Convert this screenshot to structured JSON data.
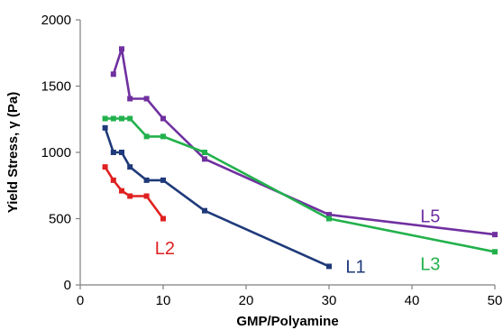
{
  "chart_data": {
    "type": "line",
    "title": "",
    "xlabel": "GMP/Polyamine",
    "ylabel": "Yield Stress, γ (Pa)",
    "xlim": [
      0,
      50
    ],
    "ylim": [
      0,
      2000
    ],
    "xticks": [
      0,
      10,
      20,
      30,
      40,
      50
    ],
    "yticks": [
      0,
      500,
      1000,
      1500,
      2000
    ],
    "grid": false,
    "legend": "inline labels",
    "series": [
      {
        "name": "L5",
        "color": "#7030a0",
        "points": [
          [
            4,
            1590
          ],
          [
            5,
            1780
          ],
          [
            6,
            1405
          ],
          [
            8,
            1405
          ],
          [
            10,
            1255
          ],
          [
            15,
            950
          ],
          [
            30,
            530
          ],
          [
            50,
            380
          ]
        ]
      },
      {
        "name": "L3",
        "color": "#22b14c",
        "points": [
          [
            3,
            1255
          ],
          [
            4,
            1255
          ],
          [
            5,
            1255
          ],
          [
            6,
            1255
          ],
          [
            8,
            1120
          ],
          [
            10,
            1120
          ],
          [
            15,
            1000
          ],
          [
            30,
            500
          ],
          [
            50,
            250
          ]
        ]
      },
      {
        "name": "L1",
        "color": "#1f3a7a",
        "points": [
          [
            3,
            1185
          ],
          [
            4,
            1000
          ],
          [
            5,
            1000
          ],
          [
            6,
            890
          ],
          [
            8,
            790
          ],
          [
            10,
            790
          ],
          [
            15,
            560
          ],
          [
            30,
            140
          ]
        ]
      },
      {
        "name": "L2",
        "color": "#e02020",
        "points": [
          [
            3,
            890
          ],
          [
            4,
            790
          ],
          [
            5,
            710
          ],
          [
            6,
            670
          ],
          [
            8,
            670
          ],
          [
            10,
            500
          ]
        ]
      }
    ],
    "annotations": [
      {
        "text": "L5",
        "series": "L5",
        "x": 41,
        "y": 520
      },
      {
        "text": "L3",
        "series": "L3",
        "x": 41,
        "y": 160
      },
      {
        "text": "L1",
        "series": "L1",
        "x": 32,
        "y": 140
      },
      {
        "text": "L2",
        "series": "L2",
        "x": 9,
        "y": 280
      }
    ]
  }
}
